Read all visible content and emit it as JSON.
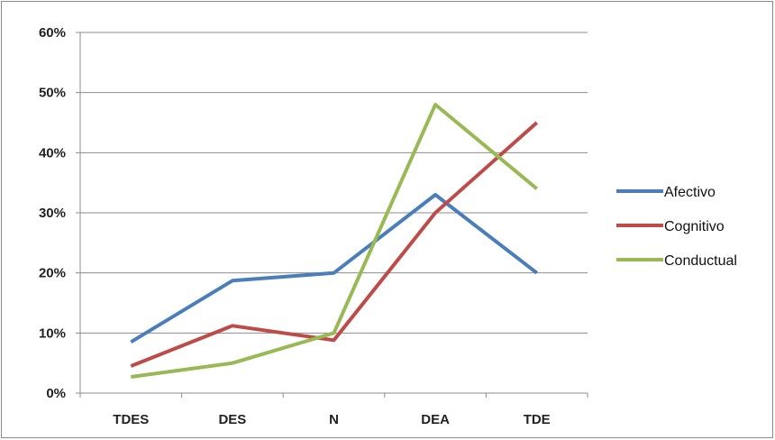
{
  "chart_data": {
    "type": "line",
    "categories": [
      "TDES",
      "DES",
      "N",
      "DEA",
      "TDE"
    ],
    "ylim": [
      0,
      0.6
    ],
    "yticks": [
      "0%",
      "10%",
      "20%",
      "30%",
      "40%",
      "50%",
      "60%"
    ],
    "grid": true,
    "legend_position": "right",
    "series": [
      {
        "name": "Afectivo",
        "color": "#4a7ebb",
        "values": [
          0.085,
          0.187,
          0.2,
          0.33,
          0.2
        ]
      },
      {
        "name": "Cognitivo",
        "color": "#be4b48",
        "values": [
          0.045,
          0.112,
          0.088,
          0.3,
          0.45
        ]
      },
      {
        "name": "Conductual",
        "color": "#98b954",
        "values": [
          0.027,
          0.05,
          0.1,
          0.48,
          0.34
        ]
      }
    ]
  }
}
